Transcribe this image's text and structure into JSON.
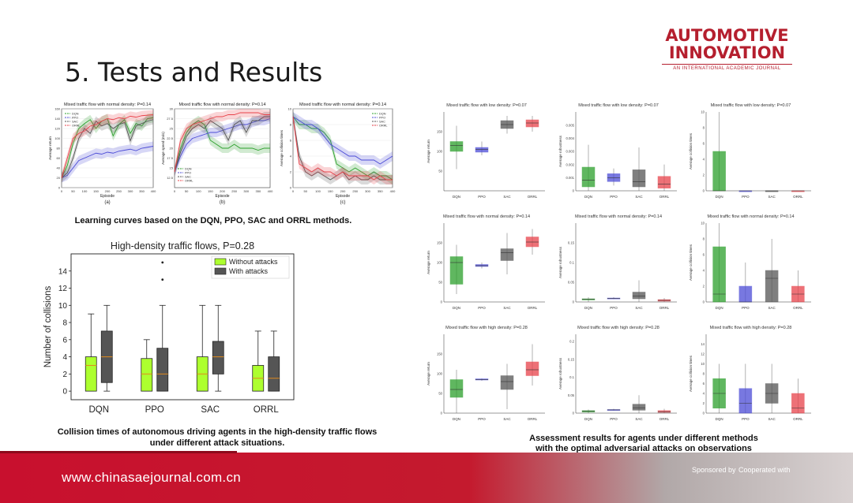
{
  "slide": {
    "title": "5.  Tests and Results",
    "logo_line1": "AUTOMOTIVE",
    "logo_line2": "INNOVATION",
    "logo_sub": "AN INTERNATIONAL ACADEMIC JOURNAL",
    "footer_url": "www.chinasaejournal.com.cn",
    "footer_sponsored": "Sponsored by",
    "footer_cooperated": "Cooperated with"
  },
  "captions": {
    "learning": "Learning curves based on the DQN, PPO, SAC and ORRL methods.",
    "collision_line1": "Collision times of autonomous driving agents in the high-density traffic flows",
    "collision_line2": "under different attack situations.",
    "assessment_line1": "Assessment  results  for agents under different methods",
    "assessment_line2": "with the optimal adversarial attacks on observations"
  },
  "colors": {
    "DQN": "#2ca02c",
    "PPO": "#4b4bd6",
    "SAC": "#555555",
    "ORRL": "#e8424a",
    "without_attacks": "#adff2f",
    "with_attacks": "#555555",
    "brand_red": "#b51f2e"
  },
  "chart_data": [
    {
      "type": "line",
      "title": "Mixed traffic flow with normal density: P=0.14",
      "panel_label": "(a)",
      "xlabel": "Episode",
      "ylabel": "Average return",
      "xlim": [
        0,
        400
      ],
      "ylim": [
        0,
        160
      ],
      "x_ticks": [
        0,
        50,
        100,
        150,
        200,
        250,
        300,
        350,
        400
      ],
      "y_ticks": [
        0,
        20,
        40,
        60,
        80,
        100,
        120,
        140,
        160
      ],
      "legend": "top-left",
      "x": [
        0,
        25,
        50,
        75,
        100,
        125,
        150,
        175,
        200,
        225,
        250,
        275,
        300,
        325,
        350,
        375,
        400
      ],
      "series": [
        {
          "name": "DQN",
          "values": [
            20,
            45,
            90,
            120,
            130,
            138,
            120,
            135,
            140,
            105,
            128,
            138,
            110,
            130,
            125,
            140,
            142
          ]
        },
        {
          "name": "PPO",
          "values": [
            20,
            25,
            40,
            55,
            60,
            65,
            70,
            68,
            72,
            70,
            74,
            76,
            78,
            75,
            80,
            82,
            84
          ]
        },
        {
          "name": "SAC",
          "values": [
            20,
            30,
            60,
            100,
            120,
            110,
            135,
            125,
            130,
            120,
            128,
            132,
            95,
            125,
            130,
            135,
            138
          ]
        },
        {
          "name": "ORRL",
          "values": [
            20,
            60,
            100,
            110,
            115,
            125,
            128,
            135,
            140,
            138,
            142,
            140,
            145,
            143,
            146,
            147,
            148
          ]
        }
      ]
    },
    {
      "type": "line",
      "title": "Mixed traffic flow with normal density: P=0.14",
      "panel_label": "(b)",
      "xlabel": "Episode",
      "ylabel": "Average speed (m/s)",
      "xlim": [
        0,
        400
      ],
      "ylim": [
        10,
        30
      ],
      "x_ticks": [
        0,
        50,
        100,
        150,
        200,
        250,
        300,
        350,
        400
      ],
      "y_ticks": [
        12.5,
        15.0,
        17.5,
        20.0,
        22.5,
        25.0,
        27.5,
        30.0
      ],
      "legend": "bottom-left",
      "x": [
        0,
        25,
        50,
        75,
        100,
        125,
        150,
        175,
        200,
        225,
        250,
        275,
        300,
        325,
        350,
        375,
        400
      ],
      "series": [
        {
          "name": "DQN",
          "values": [
            14,
            20,
            24,
            26,
            27,
            26,
            22,
            21,
            20,
            20,
            21,
            20,
            20,
            20,
            19.5,
            20,
            20
          ]
        },
        {
          "name": "PPO",
          "values": [
            14,
            18,
            21,
            22.5,
            23,
            23.5,
            24,
            24,
            24.5,
            25,
            25.5,
            26,
            26,
            26.5,
            27,
            27,
            27.5
          ]
        },
        {
          "name": "SAC",
          "values": [
            14,
            19,
            23,
            25,
            26,
            25,
            27,
            26,
            25,
            22,
            26,
            27,
            24,
            27,
            27,
            28,
            28
          ]
        },
        {
          "name": "ORRL",
          "values": [
            14,
            22,
            25,
            26,
            26.5,
            27,
            27.5,
            28,
            28,
            28.5,
            28.5,
            29,
            29,
            29,
            29,
            28.5,
            28.5
          ]
        }
      ]
    },
    {
      "type": "line",
      "title": "Mixed traffic flow with normal density: P=0.14",
      "panel_label": "(c)",
      "xlabel": "Episode",
      "ylabel": "Average collision times",
      "xlim": [
        0,
        400
      ],
      "ylim": [
        0,
        10
      ],
      "x_ticks": [
        0,
        50,
        100,
        150,
        200,
        250,
        300,
        350,
        400
      ],
      "y_ticks": [
        0,
        2,
        4,
        6,
        8,
        10
      ],
      "legend": "top-right",
      "x": [
        0,
        25,
        50,
        75,
        100,
        125,
        150,
        175,
        200,
        225,
        250,
        275,
        300,
        325,
        350,
        375,
        400
      ],
      "series": [
        {
          "name": "DQN",
          "values": [
            9,
            8,
            8,
            7.5,
            7.5,
            7,
            6,
            3,
            2.5,
            2,
            2.5,
            2,
            1.5,
            2,
            1.5,
            1.5,
            1
          ]
        },
        {
          "name": "PPO",
          "values": [
            9,
            8.5,
            8,
            8,
            7.5,
            6.5,
            5.5,
            5,
            4.5,
            4,
            4,
            3.5,
            3.5,
            3.5,
            3,
            3.5,
            4
          ]
        },
        {
          "name": "SAC",
          "values": [
            9,
            4,
            2,
            1.5,
            2,
            1.5,
            1,
            1.5,
            2,
            1,
            1.5,
            1,
            1,
            1.5,
            1,
            1,
            1
          ]
        },
        {
          "name": "ORRL",
          "values": [
            9,
            3,
            2.5,
            2,
            2.5,
            2,
            2,
            1.5,
            2,
            1.5,
            1.5,
            1.5,
            1.5,
            1,
            1.5,
            1,
            1
          ]
        }
      ]
    },
    {
      "type": "box",
      "title": "High-density traffic flows, P=0.28",
      "xlabel": "",
      "ylabel": "Number of collisions",
      "ylim": [
        -1,
        16
      ],
      "y_ticks": [
        0,
        2,
        4,
        6,
        8,
        10,
        12,
        14
      ],
      "categories": [
        "DQN",
        "PPO",
        "SAC",
        "ORRL"
      ],
      "legend": "top-right",
      "series": [
        {
          "name": "Without attacks",
          "color": "#adff2f",
          "boxes": [
            {
              "min": 0,
              "q1": 0,
              "median": 3,
              "q3": 4,
              "max": 9,
              "outliers": []
            },
            {
              "min": 0,
              "q1": 0,
              "median": 2,
              "q3": 3.8,
              "max": 6,
              "outliers": []
            },
            {
              "min": 0,
              "q1": 0,
              "median": 2,
              "q3": 4,
              "max": 10,
              "outliers": []
            },
            {
              "min": 0,
              "q1": 0,
              "median": 1.5,
              "q3": 3,
              "max": 7,
              "outliers": []
            }
          ]
        },
        {
          "name": "With attacks",
          "color": "#555555",
          "boxes": [
            {
              "min": 0,
              "q1": 1,
              "median": 4,
              "q3": 7,
              "max": 10,
              "outliers": []
            },
            {
              "min": 0,
              "q1": 0,
              "median": 2,
              "q3": 5,
              "max": 10,
              "outliers": [
                13,
                15
              ]
            },
            {
              "min": 0,
              "q1": 2,
              "median": 4,
              "q3": 5.8,
              "max": 10,
              "outliers": []
            },
            {
              "min": 0,
              "q1": 0,
              "median": 1.5,
              "q3": 4,
              "max": 7,
              "outliers": []
            }
          ]
        }
      ]
    },
    {
      "type": "box",
      "title": "Mixed traffic flow with low density: P=0.07",
      "ylabel": "Average return",
      "ylim": [
        0,
        200
      ],
      "y_ticks": [
        50,
        100,
        150
      ],
      "categories": [
        "DQN",
        "PPO",
        "SAC",
        "ORRL"
      ],
      "boxes": [
        {
          "min": 55,
          "q1": 100,
          "median": 115,
          "q3": 125,
          "max": 165
        },
        {
          "min": 90,
          "q1": 98,
          "median": 105,
          "q3": 110,
          "max": 125
        },
        {
          "min": 145,
          "q1": 158,
          "median": 168,
          "q3": 178,
          "max": 190
        },
        {
          "min": 150,
          "q1": 162,
          "median": 172,
          "q3": 180,
          "max": 190
        }
      ]
    },
    {
      "type": "box",
      "title": "Mixed traffic flow with low density: P=0.07",
      "ylabel": "Average robustness",
      "ylim": [
        0,
        0.006
      ],
      "y_ticks": [
        0,
        0.001,
        0.002,
        0.003,
        0.004,
        0.005
      ],
      "categories": [
        "DQN",
        "PPO",
        "SAC",
        "ORRL"
      ],
      "boxes": [
        {
          "min": 0,
          "q1": 0.0003,
          "median": 0.0008,
          "q3": 0.0018,
          "max": 0.0035
        },
        {
          "min": 0.0004,
          "q1": 0.0007,
          "median": 0.001,
          "q3": 0.0013,
          "max": 0.0017
        },
        {
          "min": 0,
          "q1": 0.0003,
          "median": 0.0007,
          "q3": 0.0016,
          "max": 0.0033
        },
        {
          "min": 0,
          "q1": 0.0002,
          "median": 0.0005,
          "q3": 0.0011,
          "max": 0.002
        }
      ]
    },
    {
      "type": "box",
      "title": "Mixed traffic flow with low density: P=0.07",
      "ylabel": "Average collision times",
      "ylim": [
        0,
        10
      ],
      "y_ticks": [
        0,
        2,
        4,
        6,
        8,
        10
      ],
      "categories": [
        "DQN",
        "PPO",
        "SAC",
        "ORRL"
      ],
      "boxes": [
        {
          "min": 0,
          "q1": 0,
          "median": 0,
          "q3": 5,
          "max": 10
        },
        {
          "min": 0,
          "q1": 0,
          "median": 0,
          "q3": 0,
          "max": 0
        },
        {
          "min": 0,
          "q1": 0,
          "median": 0,
          "q3": 0,
          "max": 0
        },
        {
          "min": 0,
          "q1": 0,
          "median": 0,
          "q3": 0,
          "max": 0
        }
      ]
    },
    {
      "type": "box",
      "title": "Mixed traffic flow with normal density: P=0.14",
      "ylabel": "Average return",
      "ylim": [
        0,
        200
      ],
      "y_ticks": [
        0,
        50,
        100,
        150
      ],
      "categories": [
        "DQN",
        "PPO",
        "SAC",
        "ORRL"
      ],
      "boxes": [
        {
          "min": 20,
          "q1": 45,
          "median": 100,
          "q3": 115,
          "max": 145
        },
        {
          "min": 85,
          "q1": 90,
          "median": 92,
          "q3": 95,
          "max": 100
        },
        {
          "min": 70,
          "q1": 105,
          "median": 125,
          "q3": 135,
          "max": 175
        },
        {
          "min": 120,
          "q1": 140,
          "median": 152,
          "q3": 165,
          "max": 185
        }
      ]
    },
    {
      "type": "box",
      "title": "Mixed traffic flow with normal density: P=0.14",
      "ylabel": "Average robustness",
      "ylim": [
        0,
        0.2
      ],
      "y_ticks": [
        0,
        0.05,
        0.1,
        0.15
      ],
      "categories": [
        "DQN",
        "PPO",
        "SAC",
        "ORRL"
      ],
      "boxes": [
        {
          "min": 0,
          "q1": 0.005,
          "median": 0.007,
          "q3": 0.008,
          "max": 0.012
        },
        {
          "min": 0.007,
          "q1": 0.008,
          "median": 0.009,
          "q3": 0.01,
          "max": 0.012
        },
        {
          "min": 0,
          "q1": 0.008,
          "median": 0.015,
          "q3": 0.025,
          "max": 0.055
        },
        {
          "min": 0,
          "q1": 0.002,
          "median": 0.004,
          "q3": 0.006,
          "max": 0.01
        }
      ]
    },
    {
      "type": "box",
      "title": "Mixed traffic flow with normal density: P=0.14",
      "ylabel": "Average collision times",
      "ylim": [
        0,
        10
      ],
      "y_ticks": [
        0,
        2,
        4,
        6,
        8,
        10
      ],
      "categories": [
        "DQN",
        "PPO",
        "SAC",
        "ORRL"
      ],
      "boxes": [
        {
          "min": 0,
          "q1": 0,
          "median": 1,
          "q3": 7,
          "max": 10
        },
        {
          "min": 0,
          "q1": 0,
          "median": 0,
          "q3": 2,
          "max": 5
        },
        {
          "min": 0,
          "q1": 0,
          "median": 3,
          "q3": 4,
          "max": 8
        },
        {
          "min": 0,
          "q1": 0,
          "median": 1,
          "q3": 2,
          "max": 4
        }
      ]
    },
    {
      "type": "box",
      "title": "Mixed traffic flow with high density: P=0.28",
      "ylabel": "Average return",
      "ylim": [
        0,
        200
      ],
      "y_ticks": [
        0,
        50,
        100,
        150
      ],
      "categories": [
        "DQN",
        "PPO",
        "SAC",
        "ORRL"
      ],
      "boxes": [
        {
          "min": 0,
          "q1": 40,
          "median": 60,
          "q3": 85,
          "max": 110
        },
        {
          "min": 82,
          "q1": 84,
          "median": 85,
          "q3": 87,
          "max": 88
        },
        {
          "min": 10,
          "q1": 60,
          "median": 80,
          "q3": 95,
          "max": 125
        },
        {
          "min": 70,
          "q1": 95,
          "median": 110,
          "q3": 130,
          "max": 175
        }
      ]
    },
    {
      "type": "box",
      "title": "Mixed traffic flow with high density: P=0.28",
      "ylabel": "Average robustness",
      "ylim": [
        0,
        0.22
      ],
      "y_ticks": [
        0,
        0.05,
        0.1,
        0.15,
        0.2
      ],
      "categories": [
        "DQN",
        "PPO",
        "SAC",
        "ORRL"
      ],
      "boxes": [
        {
          "min": 0,
          "q1": 0.003,
          "median": 0.005,
          "q3": 0.007,
          "max": 0.01
        },
        {
          "min": 0.007,
          "q1": 0.008,
          "median": 0.009,
          "q3": 0.01,
          "max": 0.012
        },
        {
          "min": 0,
          "q1": 0.008,
          "median": 0.015,
          "q3": 0.025,
          "max": 0.05
        },
        {
          "min": 0,
          "q1": 0.002,
          "median": 0.004,
          "q3": 0.007,
          "max": 0.012
        }
      ]
    },
    {
      "type": "box",
      "title": "Mixed traffic flow with high density: P=0.28",
      "ylabel": "Average collision times",
      "ylim": [
        0,
        16
      ],
      "y_ticks": [
        0,
        2,
        4,
        6,
        8,
        10,
        12,
        14
      ],
      "categories": [
        "DQN",
        "PPO",
        "SAC",
        "ORRL"
      ],
      "boxes": [
        {
          "min": 0,
          "q1": 1,
          "median": 4,
          "q3": 7,
          "max": 10
        },
        {
          "min": 0,
          "q1": 0,
          "median": 2,
          "q3": 5,
          "max": 10
        },
        {
          "min": 0,
          "q1": 2,
          "median": 4,
          "q3": 6,
          "max": 10
        },
        {
          "min": 0,
          "q1": 0,
          "median": 1,
          "q3": 4,
          "max": 7
        }
      ]
    }
  ]
}
